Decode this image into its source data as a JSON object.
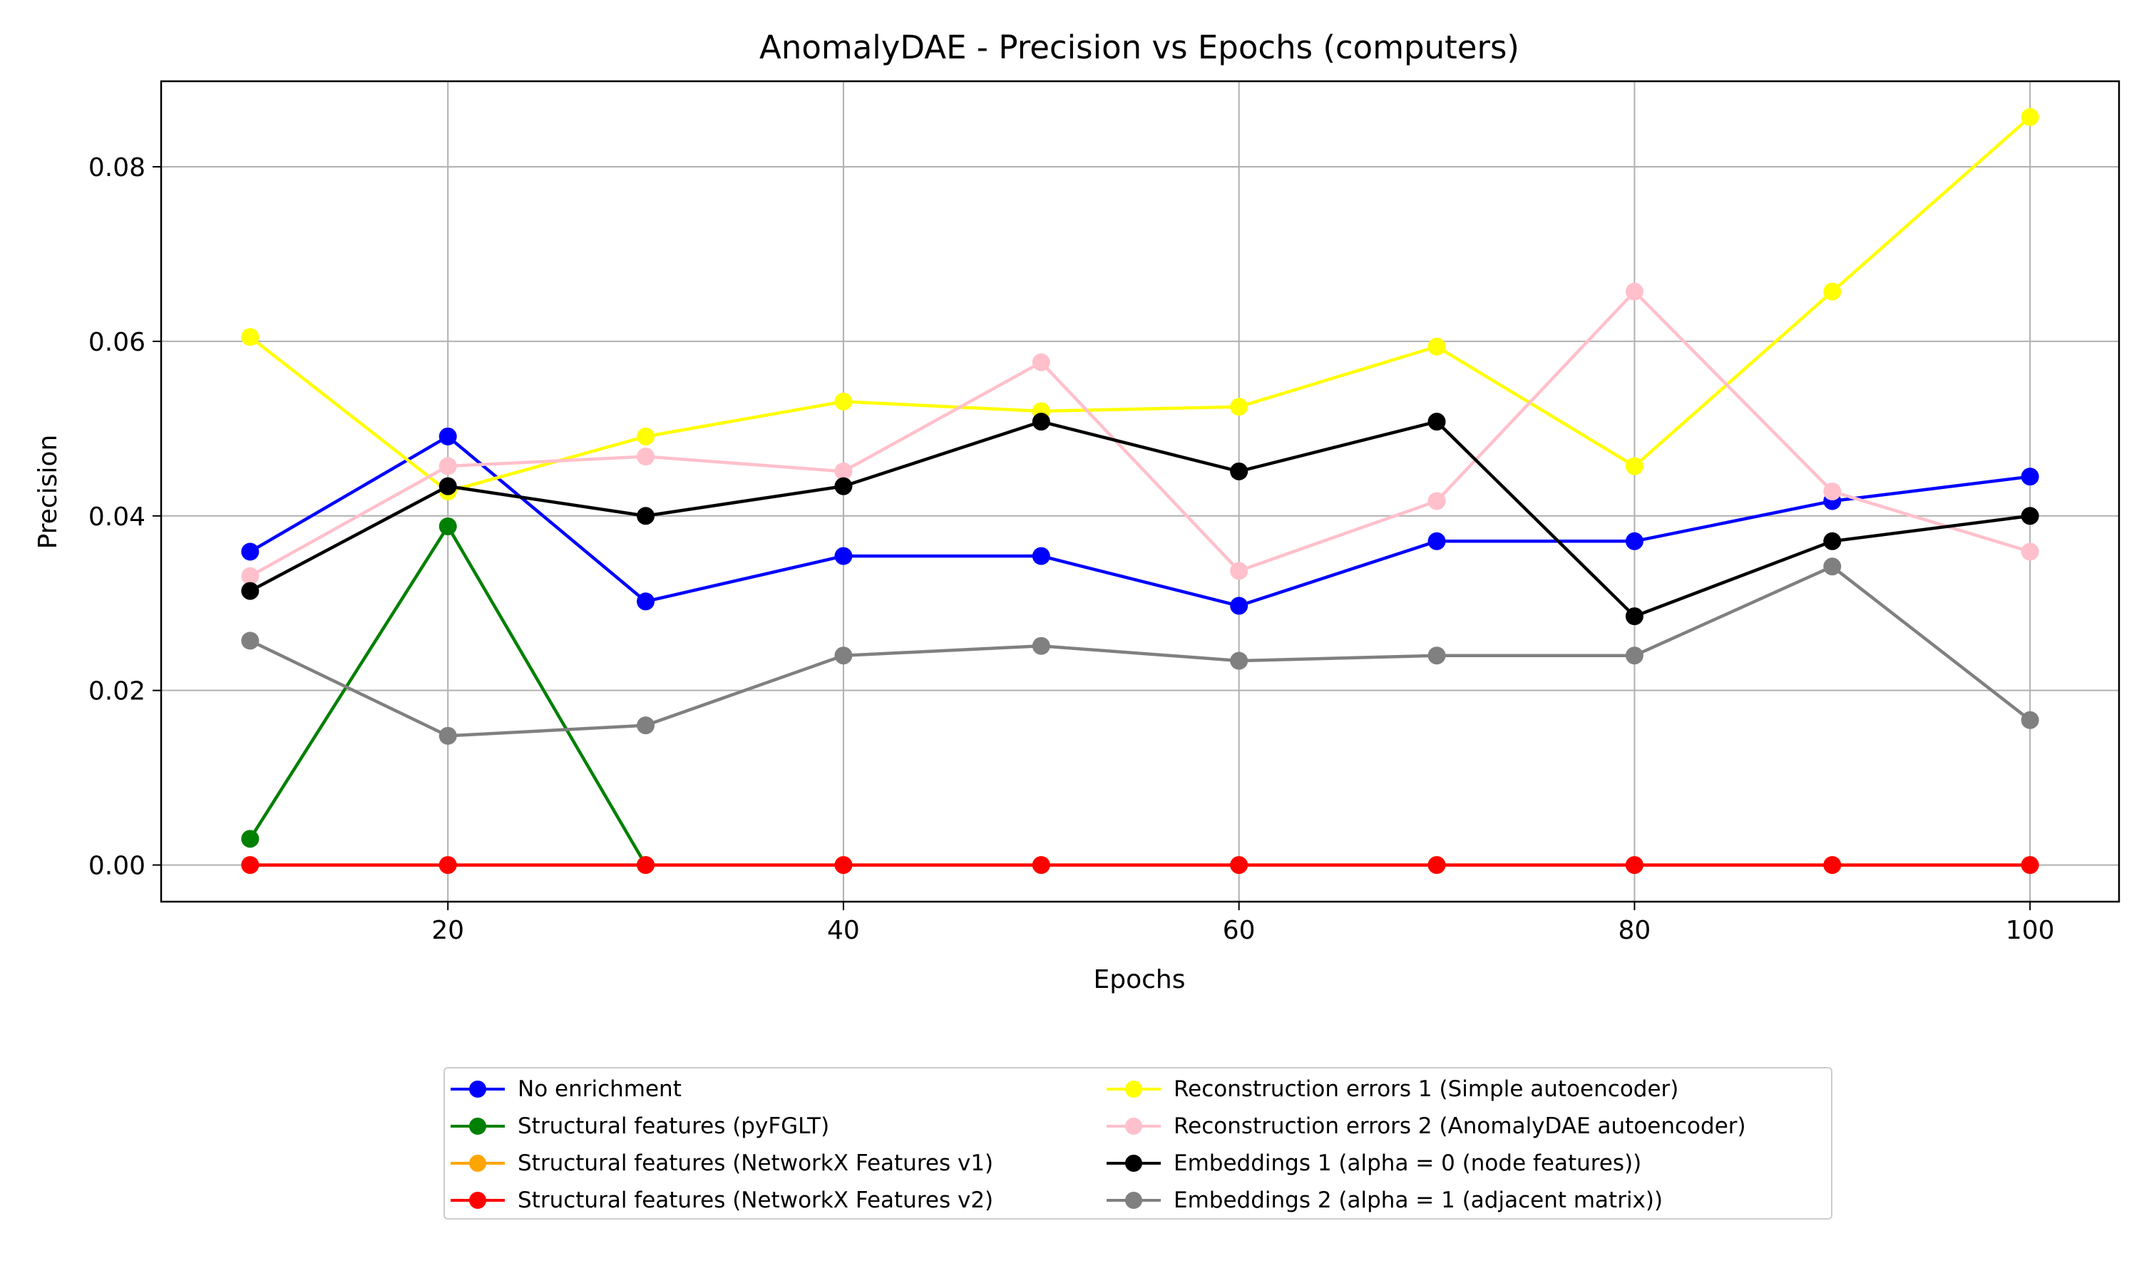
{
  "chart_data": {
    "type": "line",
    "title": "AnomalyDAE - Precision vs Epochs (computers)",
    "xlabel": "Epochs",
    "ylabel": "Precision",
    "x": [
      10,
      20,
      30,
      40,
      50,
      60,
      70,
      80,
      90,
      100
    ],
    "xlim": [
      5.5,
      104.5
    ],
    "ylim": [
      -0.0042,
      0.0898
    ],
    "xticks": [
      "20",
      "40",
      "60",
      "80",
      "100"
    ],
    "yticks": [
      "0.00",
      "0.02",
      "0.04",
      "0.06",
      "0.08"
    ],
    "grid": true,
    "legend_position": "bottom-center",
    "series": [
      {
        "name": "No enrichment",
        "color": "#0000ff",
        "values": [
          0.0359,
          0.0491,
          0.0302,
          0.0354,
          0.0354,
          0.0297,
          0.0371,
          0.0371,
          0.0417,
          0.0445
        ]
      },
      {
        "name": "Structural features (pyFGLT)",
        "color": "#008000",
        "values": [
          0.003,
          0.0388,
          0.0,
          null,
          null,
          null,
          null,
          null,
          null,
          null
        ]
      },
      {
        "name": "Structural features (NetworkX Features v1)",
        "color": "#ffa500",
        "values": [
          0.0,
          0.0,
          0.0,
          0.0,
          0.0,
          0.0,
          0.0,
          0.0,
          0.0,
          0.0
        ]
      },
      {
        "name": "Structural features (NetworkX Features v2)",
        "color": "#ff0000",
        "values": [
          0.0,
          0.0,
          0.0,
          0.0,
          0.0,
          0.0,
          0.0,
          0.0,
          0.0,
          0.0
        ]
      },
      {
        "name": "Reconstruction errors 1 (Simple autoencoder)",
        "color": "#ffff00",
        "values": [
          0.0605,
          0.0428,
          0.0491,
          0.0531,
          0.052,
          0.0525,
          0.0594,
          0.0457,
          0.0657,
          0.0857
        ]
      },
      {
        "name": "Reconstruction errors 2 (AnomalyDAE autoencoder)",
        "color": "#ffc0cb",
        "values": [
          0.0331,
          0.0457,
          0.0468,
          0.0451,
          0.0576,
          0.0337,
          0.0417,
          0.0657,
          0.0428,
          0.0359
        ]
      },
      {
        "name": "Embeddings 1 (alpha = 0 (node features))",
        "color": "#000000",
        "values": [
          0.0314,
          0.0434,
          0.04,
          0.0434,
          0.0508,
          0.0451,
          0.0508,
          0.0285,
          0.0371,
          0.04
        ]
      },
      {
        "name": "Embeddings 2 (alpha = 1 (adjacent matrix))",
        "color": "#808080",
        "values": [
          0.0257,
          0.0148,
          0.016,
          0.024,
          0.0251,
          0.0234,
          0.024,
          0.024,
          0.0342,
          0.0166
        ]
      }
    ]
  }
}
